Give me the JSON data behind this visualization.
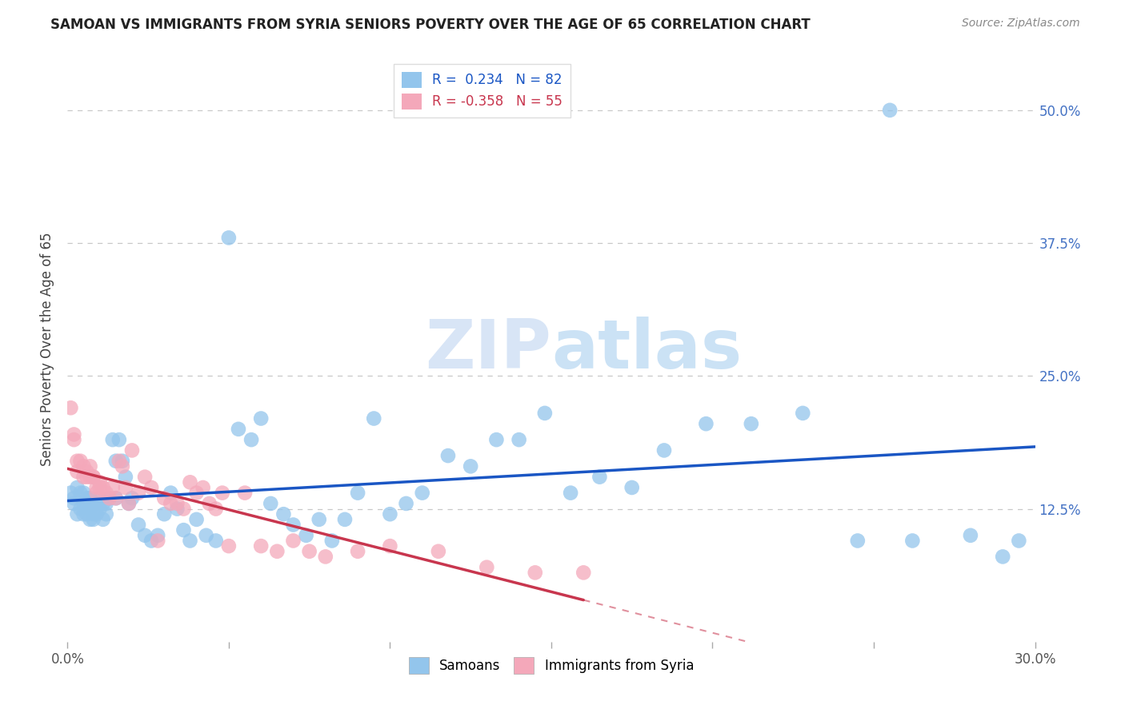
{
  "title": "SAMOAN VS IMMIGRANTS FROM SYRIA SENIORS POVERTY OVER THE AGE OF 65 CORRELATION CHART",
  "source": "Source: ZipAtlas.com",
  "ylabel": "Seniors Poverty Over the Age of 65",
  "xlim": [
    0.0,
    0.3
  ],
  "ylim": [
    0.0,
    0.55
  ],
  "xticks": [
    0.0,
    0.05,
    0.1,
    0.15,
    0.2,
    0.25,
    0.3
  ],
  "xticklabels_bottom": [
    "0.0%",
    "",
    "",
    "",
    "",
    "",
    "30.0%"
  ],
  "yticks": [
    0.0,
    0.125,
    0.25,
    0.375,
    0.5
  ],
  "yticklabels_right": [
    "",
    "12.5%",
    "25.0%",
    "37.5%",
    "50.0%"
  ],
  "grid_yticks": [
    0.125,
    0.25,
    0.375,
    0.5
  ],
  "samoans_color": "#93C5EC",
  "syria_color": "#F4A8BA",
  "samoans_line_color": "#1A56C4",
  "syria_line_color": "#C8364E",
  "watermark_zip": "ZIP",
  "watermark_atlas": "atlas",
  "legend_R_samoan": "R =  0.234",
  "legend_N_samoan": "N = 82",
  "legend_R_syria": "R = -0.358",
  "legend_N_syria": "N = 55",
  "samoans_x": [
    0.001,
    0.002,
    0.002,
    0.003,
    0.003,
    0.004,
    0.004,
    0.005,
    0.005,
    0.005,
    0.006,
    0.006,
    0.006,
    0.007,
    0.007,
    0.007,
    0.008,
    0.008,
    0.008,
    0.009,
    0.009,
    0.01,
    0.01,
    0.011,
    0.011,
    0.012,
    0.012,
    0.013,
    0.014,
    0.015,
    0.015,
    0.016,
    0.017,
    0.018,
    0.019,
    0.02,
    0.022,
    0.024,
    0.026,
    0.028,
    0.03,
    0.032,
    0.034,
    0.036,
    0.038,
    0.04,
    0.043,
    0.046,
    0.05,
    0.053,
    0.057,
    0.06,
    0.063,
    0.067,
    0.07,
    0.074,
    0.078,
    0.082,
    0.086,
    0.09,
    0.095,
    0.1,
    0.105,
    0.11,
    0.118,
    0.125,
    0.133,
    0.14,
    0.148,
    0.156,
    0.165,
    0.175,
    0.185,
    0.198,
    0.212,
    0.228,
    0.245,
    0.262,
    0.28,
    0.295,
    0.255,
    0.29
  ],
  "samoans_y": [
    0.14,
    0.135,
    0.13,
    0.145,
    0.12,
    0.14,
    0.125,
    0.13,
    0.14,
    0.12,
    0.135,
    0.12,
    0.13,
    0.125,
    0.135,
    0.115,
    0.13,
    0.12,
    0.115,
    0.13,
    0.12,
    0.135,
    0.125,
    0.13,
    0.115,
    0.13,
    0.12,
    0.135,
    0.19,
    0.17,
    0.135,
    0.19,
    0.17,
    0.155,
    0.13,
    0.135,
    0.11,
    0.1,
    0.095,
    0.1,
    0.12,
    0.14,
    0.125,
    0.105,
    0.095,
    0.115,
    0.1,
    0.095,
    0.38,
    0.2,
    0.19,
    0.21,
    0.13,
    0.12,
    0.11,
    0.1,
    0.115,
    0.095,
    0.115,
    0.14,
    0.21,
    0.12,
    0.13,
    0.14,
    0.175,
    0.165,
    0.19,
    0.19,
    0.215,
    0.14,
    0.155,
    0.145,
    0.18,
    0.205,
    0.205,
    0.215,
    0.095,
    0.095,
    0.1,
    0.095,
    0.5,
    0.08
  ],
  "syria_x": [
    0.001,
    0.002,
    0.002,
    0.003,
    0.003,
    0.004,
    0.005,
    0.005,
    0.006,
    0.006,
    0.007,
    0.007,
    0.008,
    0.008,
    0.009,
    0.009,
    0.01,
    0.01,
    0.011,
    0.012,
    0.013,
    0.014,
    0.015,
    0.016,
    0.017,
    0.018,
    0.019,
    0.02,
    0.022,
    0.024,
    0.026,
    0.028,
    0.03,
    0.032,
    0.034,
    0.036,
    0.038,
    0.04,
    0.042,
    0.044,
    0.046,
    0.048,
    0.05,
    0.055,
    0.06,
    0.065,
    0.07,
    0.075,
    0.08,
    0.09,
    0.1,
    0.115,
    0.13,
    0.145,
    0.16
  ],
  "syria_y": [
    0.22,
    0.195,
    0.19,
    0.17,
    0.16,
    0.17,
    0.165,
    0.155,
    0.16,
    0.155,
    0.155,
    0.165,
    0.155,
    0.155,
    0.14,
    0.145,
    0.145,
    0.15,
    0.145,
    0.14,
    0.135,
    0.145,
    0.135,
    0.17,
    0.165,
    0.145,
    0.13,
    0.18,
    0.14,
    0.155,
    0.145,
    0.095,
    0.135,
    0.13,
    0.13,
    0.125,
    0.15,
    0.14,
    0.145,
    0.13,
    0.125,
    0.14,
    0.09,
    0.14,
    0.09,
    0.085,
    0.095,
    0.085,
    0.08,
    0.085,
    0.09,
    0.085,
    0.07,
    0.065,
    0.065
  ]
}
